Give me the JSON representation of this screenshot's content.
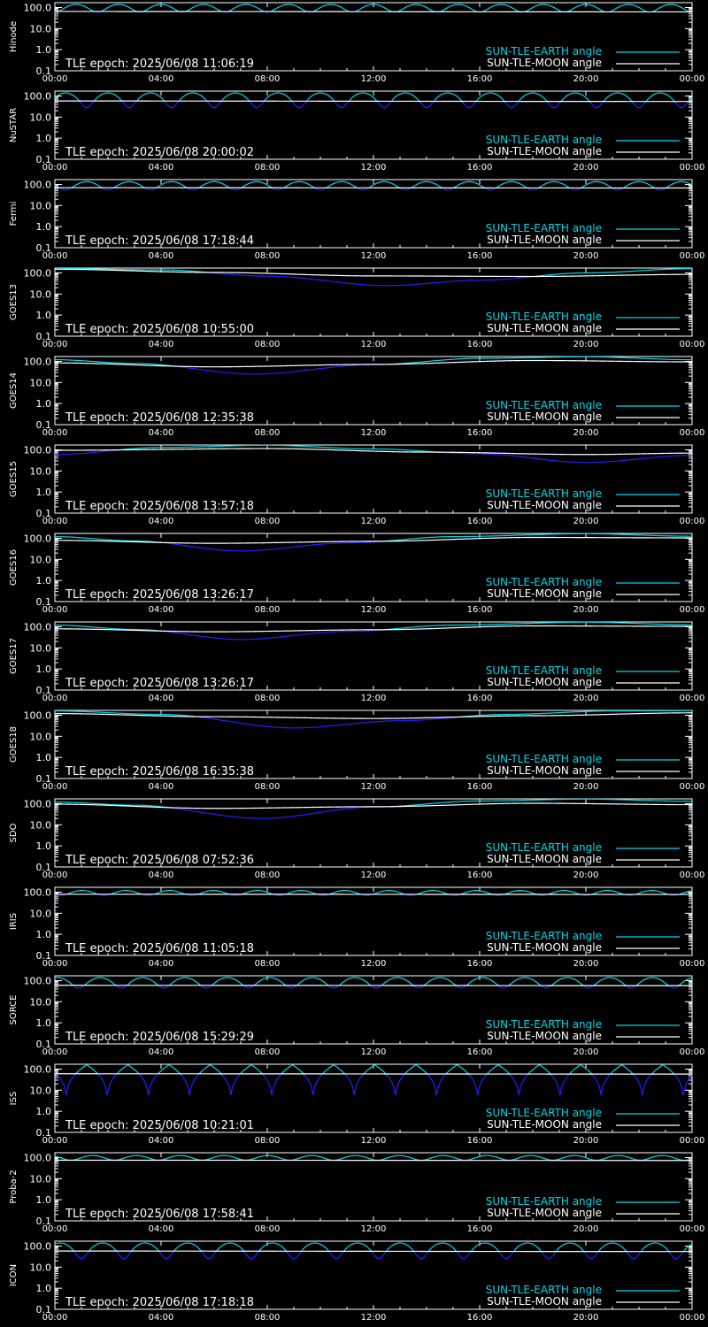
{
  "page": {
    "background": "#000000",
    "axis_color": "#ffffff",
    "legend_entries": [
      {
        "label": "SUN-TLE-EARTH angle",
        "color": "#00d8e8"
      },
      {
        "label": "SUN-TLE-MOON angle",
        "color": "#ffffff"
      }
    ],
    "earth_dip_color": "#2020ff"
  },
  "chart_data": [
    {
      "type": "line",
      "ylabel": "Hinode",
      "epoch_label": "TLE epoch: 2025/06/08 11:06:19",
      "x_ticks": [
        "00:00",
        "04:00",
        "08:00",
        "12:00",
        "16:00",
        "20:00",
        "00:00"
      ],
      "y_ticks": [
        "100.0",
        "10.0",
        "1.0",
        "0.1"
      ],
      "y_scale": "log",
      "ylim": [
        0.1,
        170
      ],
      "xlim_hours": [
        0,
        24
      ],
      "series": [
        {
          "name": "SUN-TLE-EARTH angle",
          "kind": "orbital",
          "period_hours": 1.6,
          "max": 140,
          "min": 60,
          "phase_hours": 0.0
        },
        {
          "name": "SUN-TLE-MOON angle",
          "kind": "trend",
          "points": [
            [
              0,
              65
            ],
            [
              24,
              62
            ]
          ]
        }
      ]
    },
    {
      "type": "line",
      "ylabel": "NuSTAR",
      "epoch_label": "TLE epoch: 2025/06/08 20:00:02",
      "x_ticks": [
        "00:00",
        "04:00",
        "08:00",
        "12:00",
        "16:00",
        "20:00",
        "00:00"
      ],
      "y_ticks": [
        "100.0",
        "10.0",
        "1.0",
        "0.1"
      ],
      "y_scale": "log",
      "ylim": [
        0.1,
        170
      ],
      "xlim_hours": [
        0,
        24
      ],
      "series": [
        {
          "name": "SUN-TLE-EARTH angle",
          "kind": "orbital",
          "period_hours": 1.6,
          "max": 140,
          "min": 28,
          "phase_hours": 1.2
        },
        {
          "name": "SUN-TLE-MOON angle",
          "kind": "trend",
          "points": [
            [
              0,
              58
            ],
            [
              24,
              55
            ]
          ]
        }
      ]
    },
    {
      "type": "line",
      "ylabel": "Fermi",
      "epoch_label": "TLE epoch: 2025/06/08 17:18:44",
      "x_ticks": [
        "00:00",
        "04:00",
        "08:00",
        "12:00",
        "16:00",
        "20:00",
        "00:00"
      ],
      "y_ticks": [
        "100.0",
        "10.0",
        "1.0",
        "0.1"
      ],
      "y_scale": "log",
      "ylim": [
        0.1,
        170
      ],
      "xlim_hours": [
        0,
        24
      ],
      "series": [
        {
          "name": "SUN-TLE-EARTH angle",
          "kind": "orbital",
          "period_hours": 1.6,
          "max": 135,
          "min": 55,
          "phase_hours": 0.4
        },
        {
          "name": "SUN-TLE-MOON angle",
          "kind": "trend",
          "points": [
            [
              0,
              70
            ],
            [
              24,
              68
            ]
          ]
        }
      ]
    },
    {
      "type": "line",
      "ylabel": "GOES13",
      "epoch_label": "TLE epoch: 2025/06/08 10:55:00",
      "x_ticks": [
        "00:00",
        "04:00",
        "08:00",
        "12:00",
        "16:00",
        "20:00",
        "00:00"
      ],
      "y_ticks": [
        "100.0",
        "10.0",
        "1.0",
        "0.1"
      ],
      "y_scale": "log",
      "ylim": [
        0.1,
        170
      ],
      "xlim_hours": [
        0,
        24
      ],
      "series": [
        {
          "name": "SUN-TLE-EARTH angle",
          "kind": "valley",
          "points": [
            [
              0,
              160
            ],
            [
              4,
              140
            ],
            [
              8,
              70
            ],
            [
              12.5,
              25
            ],
            [
              16,
              45
            ],
            [
              20,
              100
            ],
            [
              24,
              160
            ]
          ]
        },
        {
          "name": "SUN-TLE-MOON angle",
          "kind": "trend",
          "points": [
            [
              0,
              150
            ],
            [
              6,
              105
            ],
            [
              12,
              72
            ],
            [
              18,
              68
            ],
            [
              24,
              85
            ]
          ]
        }
      ]
    },
    {
      "type": "line",
      "ylabel": "GOES14",
      "epoch_label": "TLE epoch: 2025/06/08 12:35:38",
      "x_ticks": [
        "00:00",
        "04:00",
        "08:00",
        "12:00",
        "16:00",
        "20:00",
        "00:00"
      ],
      "y_ticks": [
        "100.0",
        "10.0",
        "1.0",
        "0.1"
      ],
      "y_scale": "log",
      "ylim": [
        0.1,
        170
      ],
      "xlim_hours": [
        0,
        24
      ],
      "series": [
        {
          "name": "SUN-TLE-EARTH angle",
          "kind": "valley",
          "points": [
            [
              0,
              120
            ],
            [
              3,
              80
            ],
            [
              7.5,
              25
            ],
            [
              12,
              70
            ],
            [
              16,
              140
            ],
            [
              20,
              165
            ],
            [
              24,
              120
            ]
          ]
        },
        {
          "name": "SUN-TLE-MOON angle",
          "kind": "trend",
          "points": [
            [
              0,
              85
            ],
            [
              6,
              55
            ],
            [
              12,
              72
            ],
            [
              18,
              110
            ],
            [
              24,
              95
            ]
          ]
        }
      ]
    },
    {
      "type": "line",
      "ylabel": "GOES15",
      "epoch_label": "TLE epoch: 2025/06/08 13:57:18",
      "x_ticks": [
        "00:00",
        "04:00",
        "08:00",
        "12:00",
        "16:00",
        "20:00",
        "00:00"
      ],
      "y_ticks": [
        "100.0",
        "10.0",
        "1.0",
        "0.1"
      ],
      "y_scale": "log",
      "ylim": [
        0.1,
        170
      ],
      "xlim_hours": [
        0,
        24
      ],
      "series": [
        {
          "name": "SUN-TLE-EARTH angle",
          "kind": "valley",
          "points": [
            [
              0,
              60
            ],
            [
              4,
              130
            ],
            [
              8,
              165
            ],
            [
              12,
              110
            ],
            [
              16,
              65
            ],
            [
              20,
              25
            ],
            [
              24,
              55
            ]
          ]
        },
        {
          "name": "SUN-TLE-MOON angle",
          "kind": "trend",
          "points": [
            [
              0,
              95
            ],
            [
              8,
              115
            ],
            [
              14,
              78
            ],
            [
              20,
              60
            ],
            [
              24,
              70
            ]
          ]
        }
      ]
    },
    {
      "type": "line",
      "ylabel": "GOES16",
      "epoch_label": "TLE epoch: 2025/06/08 13:26:17",
      "x_ticks": [
        "00:00",
        "04:00",
        "08:00",
        "12:00",
        "16:00",
        "20:00",
        "00:00"
      ],
      "y_ticks": [
        "100.0",
        "10.0",
        "1.0",
        "0.1"
      ],
      "y_scale": "log",
      "ylim": [
        0.1,
        170
      ],
      "xlim_hours": [
        0,
        24
      ],
      "series": [
        {
          "name": "SUN-TLE-EARTH angle",
          "kind": "valley",
          "points": [
            [
              0,
              120
            ],
            [
              3,
              75
            ],
            [
              7,
              25
            ],
            [
              11,
              60
            ],
            [
              15,
              120
            ],
            [
              20,
              165
            ],
            [
              24,
              125
            ]
          ]
        },
        {
          "name": "SUN-TLE-MOON angle",
          "kind": "trend",
          "points": [
            [
              0,
              80
            ],
            [
              6,
              58
            ],
            [
              12,
              72
            ],
            [
              18,
              110
            ],
            [
              24,
              105
            ]
          ]
        }
      ]
    },
    {
      "type": "line",
      "ylabel": "GOES17",
      "epoch_label": "TLE epoch: 2025/06/08 13:26:17",
      "x_ticks": [
        "00:00",
        "04:00",
        "08:00",
        "12:00",
        "16:00",
        "20:00",
        "00:00"
      ],
      "y_ticks": [
        "100.0",
        "10.0",
        "1.0",
        "0.1"
      ],
      "y_scale": "log",
      "ylim": [
        0.1,
        170
      ],
      "xlim_hours": [
        0,
        24
      ],
      "series": [
        {
          "name": "SUN-TLE-EARTH angle",
          "kind": "valley",
          "points": [
            [
              0,
              120
            ],
            [
              3,
              75
            ],
            [
              7,
              25
            ],
            [
              11,
              60
            ],
            [
              15,
              120
            ],
            [
              20,
              165
            ],
            [
              24,
              125
            ]
          ]
        },
        {
          "name": "SUN-TLE-MOON angle",
          "kind": "trend",
          "points": [
            [
              0,
              80
            ],
            [
              6,
              58
            ],
            [
              12,
              72
            ],
            [
              18,
              110
            ],
            [
              24,
              105
            ]
          ]
        }
      ]
    },
    {
      "type": "line",
      "ylabel": "GOES18",
      "epoch_label": "TLE epoch: 2025/06/08 16:35:38",
      "x_ticks": [
        "00:00",
        "04:00",
        "08:00",
        "12:00",
        "16:00",
        "20:00",
        "00:00"
      ],
      "y_ticks": [
        "100.0",
        "10.0",
        "1.0",
        "0.1"
      ],
      "y_scale": "log",
      "ylim": [
        0.1,
        170
      ],
      "xlim_hours": [
        0,
        24
      ],
      "series": [
        {
          "name": "SUN-TLE-EARTH angle",
          "kind": "valley",
          "points": [
            [
              0,
              160
            ],
            [
              4,
              110
            ],
            [
              9,
              25
            ],
            [
              13,
              55
            ],
            [
              17,
              110
            ],
            [
              21,
              160
            ],
            [
              24,
              165
            ]
          ]
        },
        {
          "name": "SUN-TLE-MOON angle",
          "kind": "trend",
          "points": [
            [
              0,
              120
            ],
            [
              6,
              85
            ],
            [
              12,
              70
            ],
            [
              18,
              95
            ],
            [
              24,
              130
            ]
          ]
        }
      ]
    },
    {
      "type": "line",
      "ylabel": "SDO",
      "epoch_label": "TLE epoch: 2025/06/08 07:52:36",
      "x_ticks": [
        "00:00",
        "04:00",
        "08:00",
        "12:00",
        "16:00",
        "20:00",
        "00:00"
      ],
      "y_ticks": [
        "100.0",
        "10.0",
        "1.0",
        "0.1"
      ],
      "y_scale": "log",
      "ylim": [
        0.1,
        170
      ],
      "xlim_hours": [
        0,
        24
      ],
      "series": [
        {
          "name": "SUN-TLE-EARTH angle",
          "kind": "valley",
          "points": [
            [
              0,
              120
            ],
            [
              3,
              85
            ],
            [
              7.8,
              20
            ],
            [
              12,
              70
            ],
            [
              16,
              135
            ],
            [
              20,
              165
            ],
            [
              24,
              130
            ]
          ]
        },
        {
          "name": "SUN-TLE-MOON angle",
          "kind": "trend",
          "points": [
            [
              0,
              95
            ],
            [
              6,
              60
            ],
            [
              12,
              72
            ],
            [
              18,
              105
            ],
            [
              24,
              90
            ]
          ]
        }
      ]
    },
    {
      "type": "line",
      "ylabel": "IRIS",
      "epoch_label": "TLE epoch: 2025/06/08 11:05:18",
      "x_ticks": [
        "00:00",
        "04:00",
        "08:00",
        "12:00",
        "16:00",
        "20:00",
        "00:00"
      ],
      "y_ticks": [
        "100.0",
        "10.0",
        "1.0",
        "0.1"
      ],
      "y_scale": "log",
      "ylim": [
        0.1,
        170
      ],
      "xlim_hours": [
        0,
        24
      ],
      "series": [
        {
          "name": "SUN-TLE-EARTH angle",
          "kind": "orbital",
          "period_hours": 1.65,
          "max": 120,
          "min": 70,
          "phase_hours": 0.2
        },
        {
          "name": "SUN-TLE-MOON angle",
          "kind": "trend",
          "points": [
            [
              0,
              80
            ],
            [
              24,
              78
            ]
          ]
        }
      ]
    },
    {
      "type": "line",
      "ylabel": "SORCE",
      "epoch_label": "TLE epoch: 2025/06/08 15:29:29",
      "x_ticks": [
        "00:00",
        "04:00",
        "08:00",
        "12:00",
        "16:00",
        "20:00",
        "00:00"
      ],
      "y_ticks": [
        "100.0",
        "10.0",
        "1.0",
        "0.1"
      ],
      "y_scale": "log",
      "ylim": [
        0.1,
        170
      ],
      "xlim_hours": [
        0,
        24
      ],
      "series": [
        {
          "name": "SUN-TLE-EARTH angle",
          "kind": "orbital",
          "period_hours": 1.6,
          "max": 140,
          "min": 45,
          "phase_hours": 0.9
        },
        {
          "name": "SUN-TLE-MOON angle",
          "kind": "trend",
          "points": [
            [
              0,
              60
            ],
            [
              24,
              58
            ]
          ]
        }
      ]
    },
    {
      "type": "line",
      "ylabel": "ISS",
      "epoch_label": "TLE epoch: 2025/06/08 10:21:01",
      "x_ticks": [
        "00:00",
        "04:00",
        "08:00",
        "12:00",
        "16:00",
        "20:00",
        "00:00"
      ],
      "y_ticks": [
        "100.0",
        "10.0",
        "1.0",
        "0.1"
      ],
      "y_scale": "log",
      "ylim": [
        0.1,
        170
      ],
      "xlim_hours": [
        0,
        24
      ],
      "series": [
        {
          "name": "SUN-TLE-EARTH angle",
          "kind": "orbital",
          "period_hours": 1.55,
          "max": 160,
          "min": 2.5,
          "phase_hours": 1.2,
          "sharp": true
        },
        {
          "name": "SUN-TLE-MOON angle",
          "kind": "trend",
          "points": [
            [
              0,
              60
            ],
            [
              24,
              58
            ]
          ]
        }
      ]
    },
    {
      "type": "line",
      "ylabel": "Proba-2",
      "epoch_label": "TLE epoch: 2025/06/08 17:58:41",
      "x_ticks": [
        "00:00",
        "04:00",
        "08:00",
        "12:00",
        "16:00",
        "20:00",
        "00:00"
      ],
      "y_ticks": [
        "100.0",
        "10.0",
        "1.0",
        "0.1"
      ],
      "y_scale": "log",
      "ylim": [
        0.1,
        170
      ],
      "xlim_hours": [
        0,
        24
      ],
      "series": [
        {
          "name": "SUN-TLE-EARTH angle",
          "kind": "orbital",
          "period_hours": 1.65,
          "max": 125,
          "min": 75,
          "phase_hours": 0.6
        },
        {
          "name": "SUN-TLE-MOON angle",
          "kind": "trend",
          "points": [
            [
              0,
              75
            ],
            [
              24,
              73
            ]
          ]
        }
      ]
    },
    {
      "type": "line",
      "ylabel": "ICON",
      "epoch_label": "TLE epoch: 2025/06/08 17:18:18",
      "x_ticks": [
        "00:00",
        "04:00",
        "08:00",
        "12:00",
        "16:00",
        "20:00",
        "00:00"
      ],
      "y_ticks": [
        "100.0",
        "10.0",
        "1.0",
        "0.1"
      ],
      "y_scale": "log",
      "ylim": [
        0.1,
        170
      ],
      "xlim_hours": [
        0,
        24
      ],
      "series": [
        {
          "name": "SUN-TLE-EARTH angle",
          "kind": "orbital",
          "period_hours": 1.6,
          "max": 140,
          "min": 25,
          "phase_hours": 1.0
        },
        {
          "name": "SUN-TLE-MOON angle",
          "kind": "trend",
          "points": [
            [
              0,
              58
            ],
            [
              24,
              55
            ]
          ]
        }
      ]
    }
  ]
}
